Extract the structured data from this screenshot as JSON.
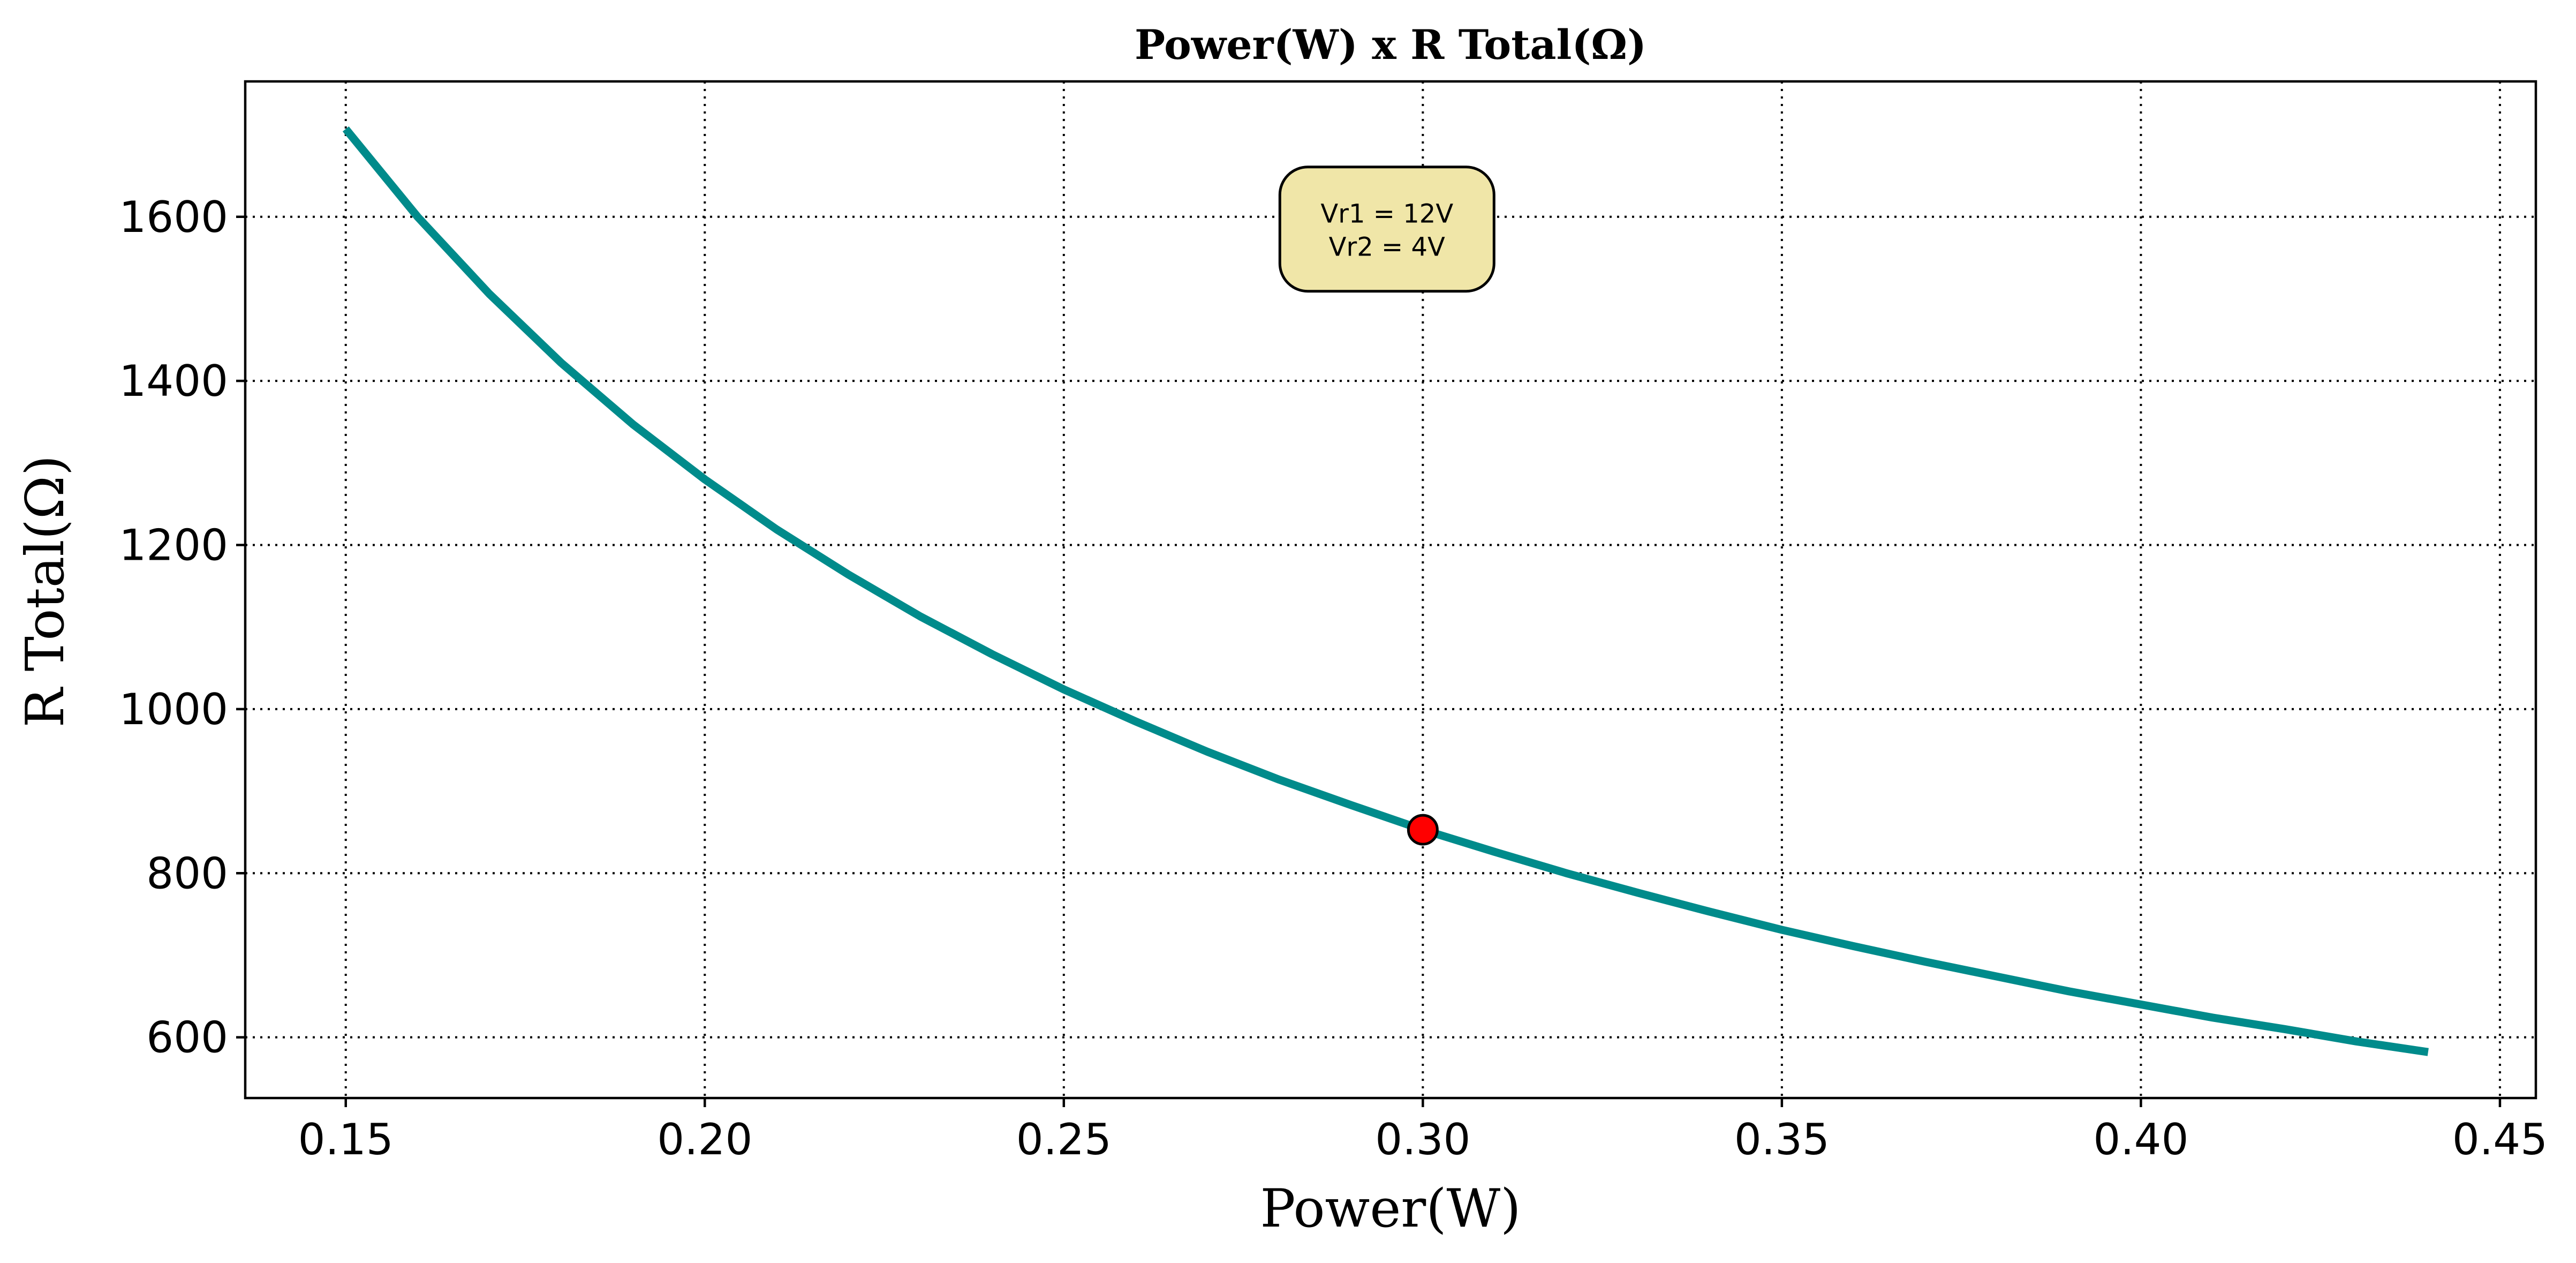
{
  "chart_data": {
    "type": "line",
    "title": "Power(W) x R Total(Ω)",
    "xlabel": "Power(W)",
    "ylabel": "R Total(Ω)",
    "xlim": [
      0.136,
      0.455
    ],
    "ylim": [
      526,
      1765
    ],
    "x_ticks": [
      0.15,
      0.2,
      0.25,
      0.3,
      0.35,
      0.4,
      0.45
    ],
    "x_tick_labels": [
      "0.15",
      "0.20",
      "0.25",
      "0.30",
      "0.35",
      "0.40",
      "0.45"
    ],
    "y_ticks": [
      600,
      800,
      1000,
      1200,
      1400,
      1600
    ],
    "y_tick_labels": [
      "600",
      "800",
      "1000",
      "1200",
      "1400",
      "1600"
    ],
    "grid": true,
    "series": [
      {
        "color": "#008b8b",
        "x": [
          0.15,
          0.16,
          0.17,
          0.18,
          0.19,
          0.2,
          0.21,
          0.22,
          0.23,
          0.24,
          0.25,
          0.26,
          0.27,
          0.28,
          0.29,
          0.3,
          0.31,
          0.32,
          0.33,
          0.34,
          0.35,
          0.36,
          0.37,
          0.38,
          0.39,
          0.4,
          0.41,
          0.42,
          0.43,
          0.44
        ],
        "y": [
          1707,
          1600,
          1506,
          1422,
          1347,
          1280,
          1219,
          1164,
          1113,
          1067,
          1024,
          985,
          948,
          914,
          883,
          853,
          826,
          800,
          776,
          753,
          731,
          711,
          692,
          674,
          656,
          640,
          624,
          610,
          595,
          582
        ]
      }
    ],
    "highlight_point": {
      "x": 0.3,
      "y": 853,
      "color": "#ff0000"
    },
    "annotation": {
      "lines": [
        "Vr1 = 12V",
        "Vr2 = 4V"
      ],
      "x": 0.295,
      "y": 1585,
      "background": "#f0e6a8"
    }
  }
}
